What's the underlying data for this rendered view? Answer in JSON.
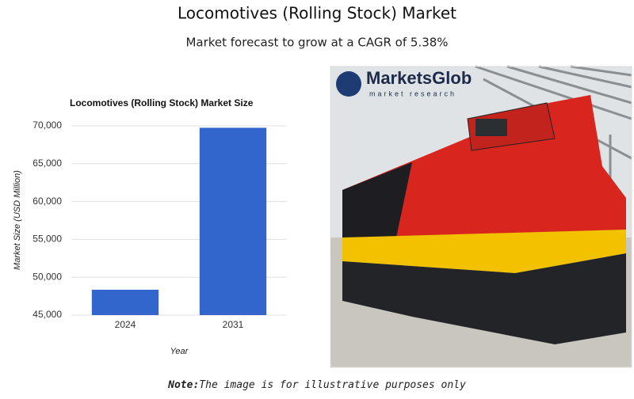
{
  "title": "Locomotives (Rolling Stock) Market",
  "subtitle": "Market forecast to grow at a CAGR of 5.38%",
  "chart_data": {
    "type": "bar",
    "title": "Locomotives (Rolling Stock) Market Size",
    "categories": [
      "2024",
      "2031"
    ],
    "values": [
      48350,
      69750
    ],
    "color": "#3366cc",
    "x_label": "Year",
    "y_label": "Market Size (USD Million)",
    "ylim": [
      45000,
      70000
    ],
    "yticks": [
      {
        "value": 45000,
        "label": "45,000"
      },
      {
        "value": 50000,
        "label": "50,000"
      },
      {
        "value": 55000,
        "label": "55,000"
      },
      {
        "value": 60000,
        "label": "60,000"
      },
      {
        "value": 65000,
        "label": "65,000"
      },
      {
        "value": 70000,
        "label": "70,000"
      }
    ],
    "grid": true
  },
  "image": {
    "logo": "MarketsGlob",
    "logo_tagline": "market research"
  },
  "note": {
    "label": "Note:",
    "text": "The image is for illustrative purposes only"
  }
}
